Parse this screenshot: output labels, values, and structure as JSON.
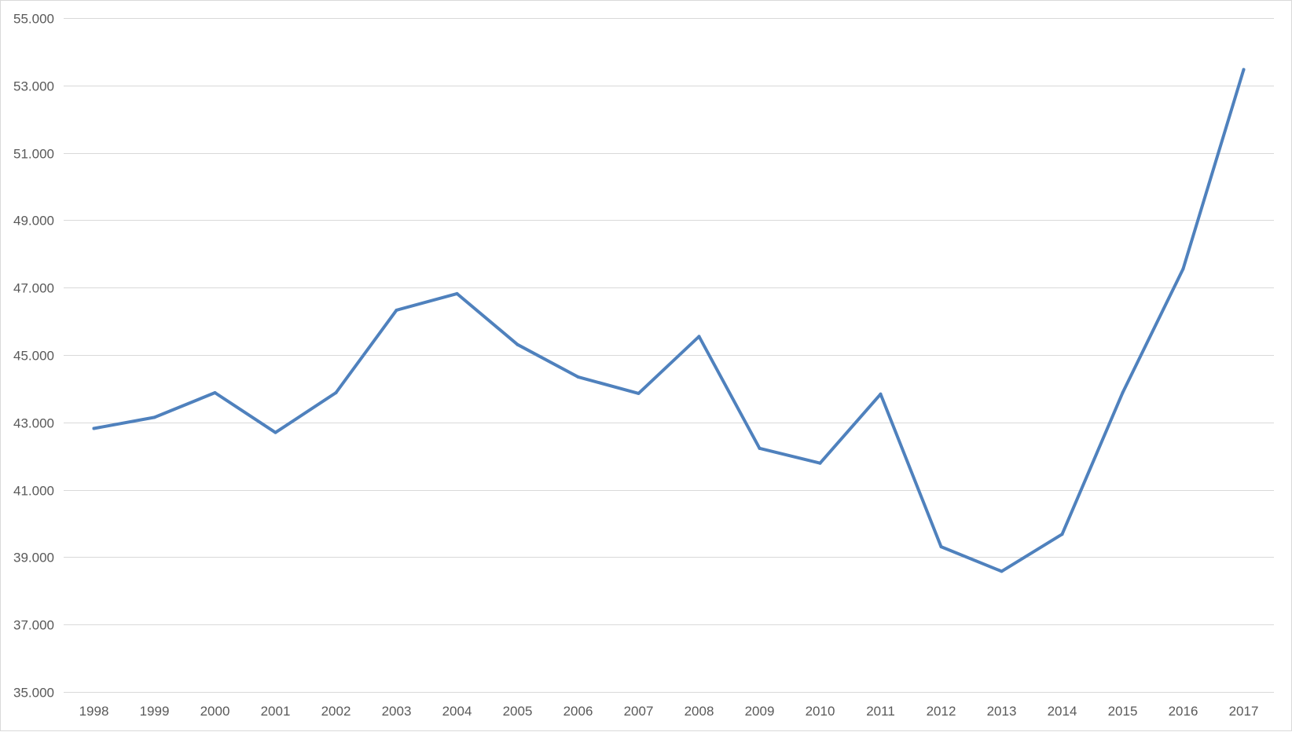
{
  "chart_data": {
    "type": "line",
    "title": "",
    "xlabel": "",
    "ylabel": "",
    "categories": [
      "1998",
      "1999",
      "2000",
      "2001",
      "2002",
      "2003",
      "2004",
      "2005",
      "2006",
      "2007",
      "2008",
      "2009",
      "2010",
      "2011",
      "2012",
      "2013",
      "2014",
      "2015",
      "2016",
      "2017"
    ],
    "series": [
      {
        "color": "#4f81bd",
        "values": [
          42.82,
          43.15,
          43.88,
          42.7,
          43.88,
          46.33,
          46.82,
          45.31,
          44.35,
          43.86,
          45.55,
          42.23,
          41.79,
          43.84,
          39.31,
          38.58,
          39.68,
          43.88,
          47.56,
          53.47
        ]
      }
    ],
    "ylim": [
      35,
      55
    ],
    "y_ticks": [
      35,
      37,
      39,
      41,
      43,
      45,
      47,
      49,
      51,
      53,
      55
    ],
    "y_tick_labels": [
      "35.000",
      "37.000",
      "39.000",
      "41.000",
      "43.000",
      "45.000",
      "47.000",
      "49.000",
      "51.000",
      "53.000",
      "55.000"
    ],
    "grid": true,
    "legend": "none"
  }
}
